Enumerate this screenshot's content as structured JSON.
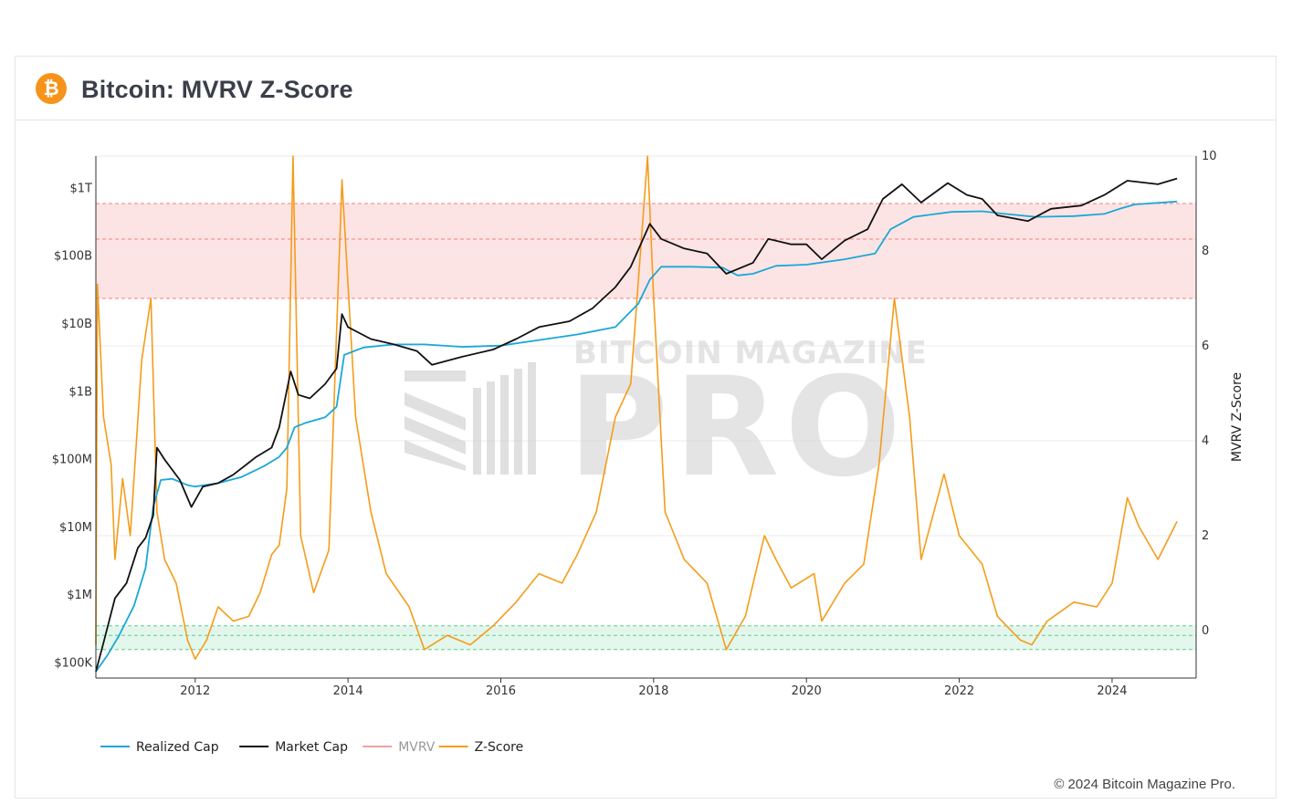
{
  "header": {
    "icon": "bitcoin-icon",
    "title": "Bitcoin: MVRV Z-Score"
  },
  "footer": {
    "copyright": "© 2024 Bitcoin Magazine Pro."
  },
  "watermark": {
    "line1": "BITCOIN MAGAZINE",
    "line2": "PRO"
  },
  "chart_data": {
    "type": "line",
    "left_axis": {
      "scale": "log",
      "range": [
        60000,
        3000000000000
      ],
      "ticks": [
        {
          "value": 100000,
          "label": "$100K"
        },
        {
          "value": 1000000,
          "label": "$1M"
        },
        {
          "value": 10000000,
          "label": "$10M"
        },
        {
          "value": 100000000,
          "label": "$100M"
        },
        {
          "value": 1000000000,
          "label": "$1B"
        },
        {
          "value": 10000000000,
          "label": "$10B"
        },
        {
          "value": 100000000000,
          "label": "$100B"
        },
        {
          "value": 1000000000000,
          "label": "$1T"
        }
      ]
    },
    "right_axis": {
      "label": "MVRV Z-Score",
      "range": [
        -1,
        10
      ],
      "ticks": [
        0,
        2,
        4,
        6,
        8,
        10
      ]
    },
    "x_axis": {
      "range": [
        2010.7,
        2025.1
      ],
      "ticks": [
        2012,
        2014,
        2016,
        2018,
        2020,
        2022,
        2024
      ]
    },
    "bands": [
      {
        "name": "high-zone",
        "from": 7,
        "to": 9,
        "mid": 8.25,
        "color": "#fde4e4",
        "line": "#f08080"
      },
      {
        "name": "low-zone",
        "from": -0.4,
        "to": 0.1,
        "mid": -0.1,
        "color": "#e3f7ec",
        "line": "#5ccf8c"
      }
    ],
    "colors": {
      "realized_cap": "#1aa8d8",
      "market_cap": "#111111",
      "mvrv": "#f4a0a0",
      "z_score": "#f59c1a"
    },
    "legend": [
      {
        "key": "realized_cap",
        "label": "Realized Cap"
      },
      {
        "key": "market_cap",
        "label": "Market Cap"
      },
      {
        "key": "mvrv",
        "label": "MVRV",
        "muted": true
      },
      {
        "key": "z_score",
        "label": "Z-Score"
      }
    ],
    "series": [
      {
        "key": "realized_cap",
        "name": "Realized Cap",
        "axis": "left",
        "points": [
          [
            2010.7,
            75000
          ],
          [
            2010.85,
            130000
          ],
          [
            2011.0,
            250000
          ],
          [
            2011.2,
            700000
          ],
          [
            2011.35,
            2500000
          ],
          [
            2011.45,
            20000000
          ],
          [
            2011.55,
            50000000
          ],
          [
            2011.7,
            52000000
          ],
          [
            2011.9,
            42000000
          ],
          [
            2012.0,
            40000000
          ],
          [
            2012.3,
            45000000
          ],
          [
            2012.6,
            55000000
          ],
          [
            2012.9,
            80000000
          ],
          [
            2013.1,
            110000000
          ],
          [
            2013.2,
            150000000
          ],
          [
            2013.3,
            300000000
          ],
          [
            2013.45,
            350000000
          ],
          [
            2013.7,
            420000000
          ],
          [
            2013.85,
            600000000
          ],
          [
            2013.95,
            3500000000
          ],
          [
            2014.2,
            4500000000
          ],
          [
            2014.6,
            5000000000
          ],
          [
            2015.0,
            5000000000
          ],
          [
            2015.5,
            4600000000
          ],
          [
            2016.0,
            4800000000
          ],
          [
            2016.5,
            5800000000
          ],
          [
            2017.0,
            7000000000
          ],
          [
            2017.5,
            9000000000
          ],
          [
            2017.8,
            20000000000
          ],
          [
            2017.95,
            45000000000
          ],
          [
            2018.1,
            70000000000
          ],
          [
            2018.5,
            70000000000
          ],
          [
            2018.9,
            68000000000
          ],
          [
            2019.1,
            52000000000
          ],
          [
            2019.3,
            55000000000
          ],
          [
            2019.6,
            72000000000
          ],
          [
            2020.0,
            75000000000
          ],
          [
            2020.5,
            90000000000
          ],
          [
            2020.9,
            110000000000
          ],
          [
            2021.1,
            250000000000
          ],
          [
            2021.4,
            380000000000
          ],
          [
            2021.9,
            450000000000
          ],
          [
            2022.3,
            460000000000
          ],
          [
            2022.6,
            420000000000
          ],
          [
            2023.0,
            380000000000
          ],
          [
            2023.5,
            390000000000
          ],
          [
            2023.9,
            420000000000
          ],
          [
            2024.1,
            500000000000
          ],
          [
            2024.3,
            580000000000
          ],
          [
            2024.85,
            640000000000
          ]
        ]
      },
      {
        "key": "market_cap",
        "name": "Market Cap",
        "axis": "left",
        "points": [
          [
            2010.7,
            75000
          ],
          [
            2010.8,
            200000
          ],
          [
            2010.95,
            900000
          ],
          [
            2011.1,
            1500000
          ],
          [
            2011.25,
            5000000
          ],
          [
            2011.35,
            7000000
          ],
          [
            2011.45,
            15000000
          ],
          [
            2011.5,
            150000000
          ],
          [
            2011.6,
            100000000
          ],
          [
            2011.8,
            50000000
          ],
          [
            2011.95,
            20000000
          ],
          [
            2012.1,
            40000000
          ],
          [
            2012.3,
            45000000
          ],
          [
            2012.5,
            60000000
          ],
          [
            2012.8,
            110000000
          ],
          [
            2013.0,
            150000000
          ],
          [
            2013.1,
            300000000
          ],
          [
            2013.25,
            2000000000
          ],
          [
            2013.35,
            900000000
          ],
          [
            2013.5,
            800000000
          ],
          [
            2013.7,
            1300000000
          ],
          [
            2013.85,
            2200000000
          ],
          [
            2013.92,
            14000000000
          ],
          [
            2014.0,
            9000000000
          ],
          [
            2014.3,
            6000000000
          ],
          [
            2014.6,
            5000000000
          ],
          [
            2014.9,
            4000000000
          ],
          [
            2015.1,
            2500000000
          ],
          [
            2015.5,
            3300000000
          ],
          [
            2015.9,
            4200000000
          ],
          [
            2016.2,
            6000000000
          ],
          [
            2016.5,
            9000000000
          ],
          [
            2016.9,
            11000000000
          ],
          [
            2017.2,
            17000000000
          ],
          [
            2017.5,
            35000000000
          ],
          [
            2017.7,
            70000000000
          ],
          [
            2017.95,
            300000000000
          ],
          [
            2018.1,
            180000000000
          ],
          [
            2018.4,
            130000000000
          ],
          [
            2018.7,
            110000000000
          ],
          [
            2018.95,
            55000000000
          ],
          [
            2019.3,
            80000000000
          ],
          [
            2019.5,
            180000000000
          ],
          [
            2019.8,
            150000000000
          ],
          [
            2020.0,
            150000000000
          ],
          [
            2020.2,
            90000000000
          ],
          [
            2020.5,
            170000000000
          ],
          [
            2020.8,
            250000000000
          ],
          [
            2021.0,
            700000000000
          ],
          [
            2021.25,
            1150000000000
          ],
          [
            2021.5,
            620000000000
          ],
          [
            2021.85,
            1200000000000
          ],
          [
            2022.1,
            800000000000
          ],
          [
            2022.3,
            700000000000
          ],
          [
            2022.5,
            400000000000
          ],
          [
            2022.9,
            330000000000
          ],
          [
            2023.2,
            500000000000
          ],
          [
            2023.6,
            560000000000
          ],
          [
            2023.9,
            800000000000
          ],
          [
            2024.2,
            1300000000000
          ],
          [
            2024.6,
            1150000000000
          ],
          [
            2024.85,
            1400000000000
          ]
        ]
      },
      {
        "key": "z_score",
        "name": "Z-Score",
        "axis": "right",
        "points": [
          [
            2010.7,
            -0.3
          ],
          [
            2010.72,
            7.3
          ],
          [
            2010.8,
            4.5
          ],
          [
            2010.9,
            3.5
          ],
          [
            2010.95,
            1.5
          ],
          [
            2011.05,
            3.2
          ],
          [
            2011.15,
            2.0
          ],
          [
            2011.3,
            5.7
          ],
          [
            2011.42,
            7.0
          ],
          [
            2011.5,
            2.5
          ],
          [
            2011.6,
            1.5
          ],
          [
            2011.75,
            1.0
          ],
          [
            2011.9,
            -0.2
          ],
          [
            2012.0,
            -0.6
          ],
          [
            2012.15,
            -0.2
          ],
          [
            2012.3,
            0.5
          ],
          [
            2012.5,
            0.2
          ],
          [
            2012.7,
            0.3
          ],
          [
            2012.85,
            0.8
          ],
          [
            2013.0,
            1.6
          ],
          [
            2013.1,
            1.8
          ],
          [
            2013.2,
            3.0
          ],
          [
            2013.28,
            10.0
          ],
          [
            2013.38,
            2.0
          ],
          [
            2013.55,
            0.8
          ],
          [
            2013.75,
            1.7
          ],
          [
            2013.92,
            9.5
          ],
          [
            2014.1,
            4.5
          ],
          [
            2014.3,
            2.5
          ],
          [
            2014.5,
            1.2
          ],
          [
            2014.8,
            0.5
          ],
          [
            2015.0,
            -0.4
          ],
          [
            2015.3,
            -0.1
          ],
          [
            2015.6,
            -0.3
          ],
          [
            2015.9,
            0.1
          ],
          [
            2016.2,
            0.6
          ],
          [
            2016.5,
            1.2
          ],
          [
            2016.8,
            1.0
          ],
          [
            2017.0,
            1.6
          ],
          [
            2017.25,
            2.5
          ],
          [
            2017.5,
            4.5
          ],
          [
            2017.7,
            5.2
          ],
          [
            2017.92,
            10.0
          ],
          [
            2018.0,
            7.0
          ],
          [
            2018.15,
            2.5
          ],
          [
            2018.4,
            1.5
          ],
          [
            2018.7,
            1.0
          ],
          [
            2018.95,
            -0.4
          ],
          [
            2019.2,
            0.3
          ],
          [
            2019.45,
            2.0
          ],
          [
            2019.6,
            1.5
          ],
          [
            2019.8,
            0.9
          ],
          [
            2020.1,
            1.2
          ],
          [
            2020.2,
            0.2
          ],
          [
            2020.5,
            1.0
          ],
          [
            2020.75,
            1.4
          ],
          [
            2020.95,
            3.5
          ],
          [
            2021.15,
            7.0
          ],
          [
            2021.35,
            4.5
          ],
          [
            2021.5,
            1.5
          ],
          [
            2021.8,
            3.3
          ],
          [
            2022.0,
            2.0
          ],
          [
            2022.3,
            1.4
          ],
          [
            2022.5,
            0.3
          ],
          [
            2022.8,
            -0.2
          ],
          [
            2022.95,
            -0.3
          ],
          [
            2023.15,
            0.2
          ],
          [
            2023.5,
            0.6
          ],
          [
            2023.8,
            0.5
          ],
          [
            2024.0,
            1.0
          ],
          [
            2024.2,
            2.8
          ],
          [
            2024.35,
            2.2
          ],
          [
            2024.6,
            1.5
          ],
          [
            2024.85,
            2.3
          ]
        ]
      }
    ]
  }
}
